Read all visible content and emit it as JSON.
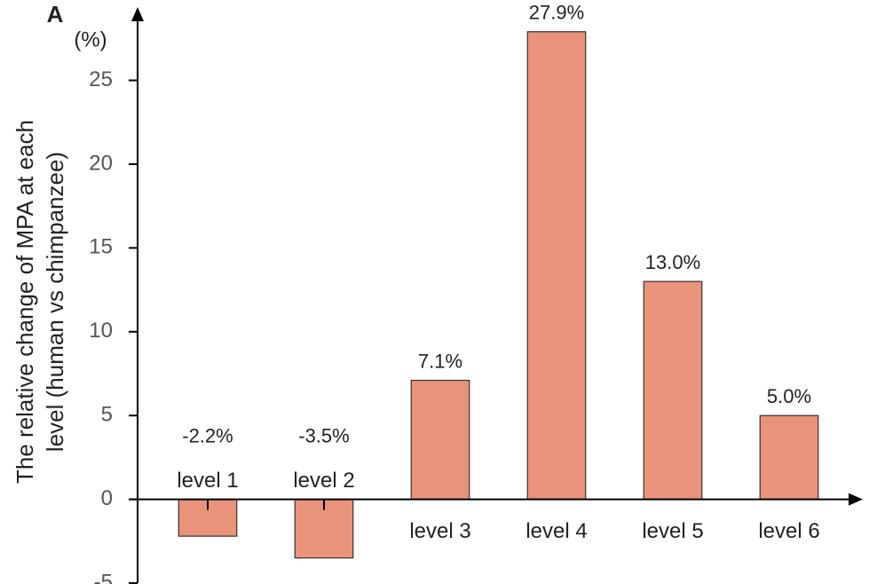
{
  "chart_data": {
    "type": "bar",
    "panel_label": "A",
    "unit_label": "(%)",
    "ylabel": [
      "The relative change of MPA at each",
      "level (human vs chimpanzee)"
    ],
    "categories": [
      "level 1",
      "level 2",
      "level 3",
      "level 4",
      "level 5",
      "level 6"
    ],
    "values": [
      -2.2,
      -3.5,
      7.1,
      27.9,
      13.0,
      5.0
    ],
    "value_labels": [
      "-2.2%",
      "-3.5%",
      "7.1%",
      "27.9%",
      "13.0%",
      "5.0%"
    ],
    "color": "#e8937a",
    "ylim": [
      -5,
      29
    ],
    "yticks": [
      -5,
      0,
      5,
      10,
      15,
      20,
      25
    ],
    "grid": false
  }
}
